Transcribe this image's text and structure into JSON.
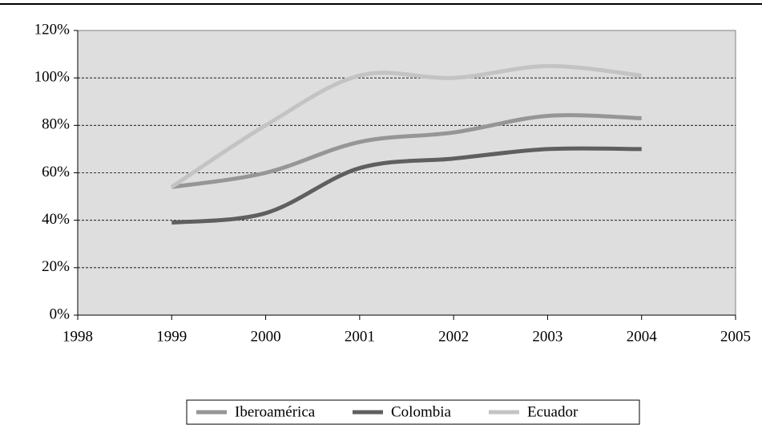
{
  "chart_data": {
    "type": "line",
    "x": [
      1999,
      2000,
      2001,
      2002,
      2003,
      2004
    ],
    "series": [
      {
        "name": "Iberoamérica",
        "color": "#969696",
        "values": [
          54,
          60,
          73,
          77,
          84,
          83
        ]
      },
      {
        "name": "Colombia",
        "color": "#5f5f5f",
        "values": [
          39,
          43,
          62,
          66,
          70,
          70
        ]
      },
      {
        "name": "Ecuador",
        "color": "#c3c3c3",
        "values": [
          54,
          80,
          101,
          100,
          105,
          101
        ]
      }
    ],
    "xlim": [
      1998,
      2005
    ],
    "xticks": [
      1998,
      1999,
      2000,
      2001,
      2002,
      2003,
      2004,
      2005
    ],
    "ylim": [
      0,
      120
    ],
    "yticks": [
      {
        "value": 0,
        "label": "0%"
      },
      {
        "value": 20,
        "label": "20%"
      },
      {
        "value": 40,
        "label": "40%"
      },
      {
        "value": 60,
        "label": "60%"
      },
      {
        "value": 80,
        "label": "80%"
      },
      {
        "value": 100,
        "label": "100%"
      },
      {
        "value": 120,
        "label": "120%"
      }
    ],
    "grid": true,
    "smooth": true,
    "legend": "bottom"
  }
}
